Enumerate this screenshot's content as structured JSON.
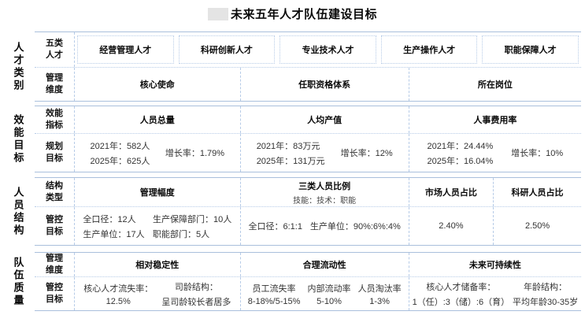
{
  "title": "未来五年人才队伍建设目标",
  "rails": {
    "s1": "人才类别",
    "s2": "效能目标",
    "s3": "人员结构",
    "s4": "队伍质量"
  },
  "s1": {
    "r1h": "五类\n人才",
    "boxes": [
      "经营管理人才",
      "科研创新人才",
      "专业技术人才",
      "生产操作人才",
      "职能保障人才"
    ],
    "r2h": "管理\n维度",
    "dims": [
      "核心使命",
      "任职资格体系",
      "所在岗位"
    ]
  },
  "s2": {
    "r1h": "效能\n指标",
    "indicators": [
      "人员总量",
      "人均产值",
      "人事费用率"
    ],
    "r2h": "规划\n目标",
    "targets": [
      {
        "line1": "2021年：582人",
        "line2": "2025年：625人",
        "growth": "增长率：1.79%"
      },
      {
        "line1": "2021年：83万元",
        "line2": "2025年：131万元",
        "growth": "增长率：12%"
      },
      {
        "line1": "2021年：24.44%",
        "line2": "2025年：16.04%",
        "growth": "增长率：10%"
      }
    ]
  },
  "s3": {
    "r1h": "结构\n类型",
    "types": [
      {
        "title": "管理幅度",
        "subtitle": ""
      },
      {
        "title": "三类人员比例",
        "subtitle": "技能：技术：职能"
      },
      {
        "title": "市场人员占比",
        "subtitle": ""
      },
      {
        "title": "科研人员占比",
        "subtitle": ""
      }
    ],
    "r2h": "管控\n目标",
    "span_a": {
      "l1": "全口径：12人",
      "l2": "生产单位：17人"
    },
    "span_b": {
      "l1": "生产保障部门：10人",
      "l2": "职能部门：5人"
    },
    "ratio": {
      "a": "全口径：6:1:1",
      "b": "生产单位：90%:6%:4%"
    },
    "market": "2.40%",
    "research": "2.50%"
  },
  "s4": {
    "r1h": "管理\n维度",
    "dims": [
      "相对稳定性",
      "合理流动性",
      "未来可持续性"
    ],
    "r2h": "管控\n目标",
    "stability": [
      {
        "l1": "核心人才流失率：",
        "l2": "12.5%"
      },
      {
        "l1": "司龄结构：",
        "l2": "呈司龄较长者居多"
      }
    ],
    "mobility": [
      {
        "l1": "员工流失率",
        "l2": "8-18%/5-15%"
      },
      {
        "l1": "内部流动率",
        "l2": "5-10%"
      },
      {
        "l1": "人员淘汰率",
        "l2": "1-3%"
      }
    ],
    "sustain": [
      {
        "l1": "核心人才储备率：",
        "l2": "1（任）:3（储）:6（育）"
      },
      {
        "l1": "年龄结构：",
        "l2": "平均年龄30-35岁"
      }
    ]
  }
}
